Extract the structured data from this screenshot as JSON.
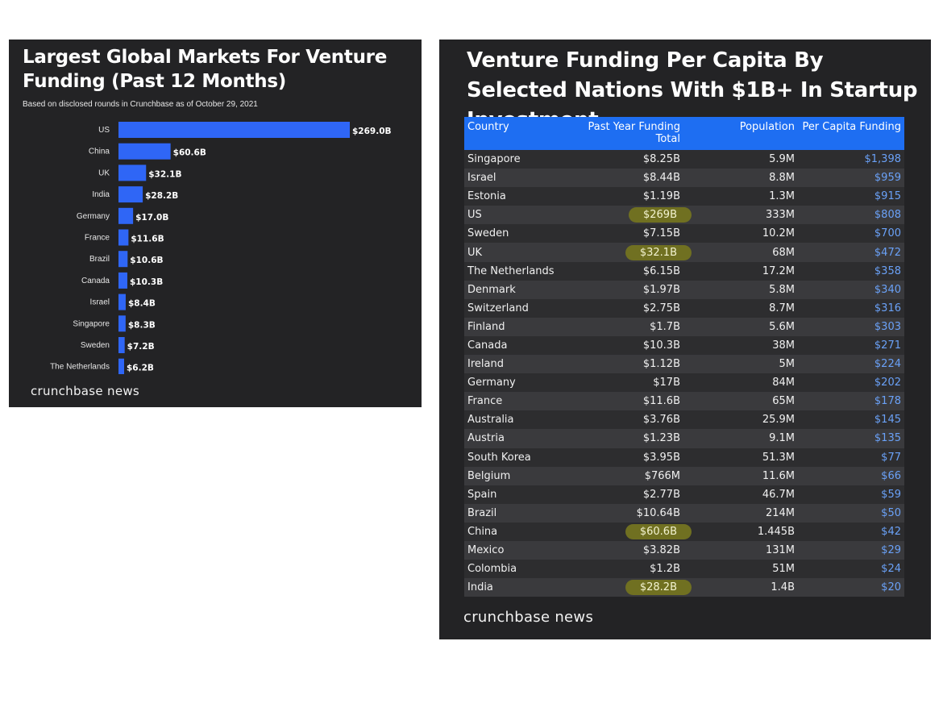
{
  "left_panel": {
    "title": "Largest Global Markets For Venture Funding (Past 12 Months)",
    "subtitle": "Based on disclosed rounds in Crunchbase as of October 29, 2021",
    "brand": "crunchbase news"
  },
  "right_panel": {
    "title": "Venture Funding Per Capita By Selected Nations With $1B+ In Startup Investment",
    "brand": "crunchbase news",
    "columns": [
      "Country",
      "Past Year Funding Total",
      "Population",
      "Per Capita Funding"
    ],
    "rows": [
      {
        "country": "Singapore",
        "funding": "$8.25B",
        "population": "5.9M",
        "per_capita": "$1,398",
        "highlight": false
      },
      {
        "country": "Israel",
        "funding": "$8.44B",
        "population": "8.8M",
        "per_capita": "$959",
        "highlight": false
      },
      {
        "country": "Estonia",
        "funding": "$1.19B",
        "population": "1.3M",
        "per_capita": "$915",
        "highlight": false
      },
      {
        "country": "US",
        "funding": "$269B",
        "population": "333M",
        "per_capita": "$808",
        "highlight": true
      },
      {
        "country": "Sweden",
        "funding": "$7.15B",
        "population": "10.2M",
        "per_capita": "$700",
        "highlight": false
      },
      {
        "country": "UK",
        "funding": "$32.1B",
        "population": "68M",
        "per_capita": "$472",
        "highlight": true
      },
      {
        "country": "The Netherlands",
        "funding": "$6.15B",
        "population": "17.2M",
        "per_capita": "$358",
        "highlight": false
      },
      {
        "country": "Denmark",
        "funding": "$1.97B",
        "population": "5.8M",
        "per_capita": "$340",
        "highlight": false
      },
      {
        "country": "Switzerland",
        "funding": "$2.75B",
        "population": "8.7M",
        "per_capita": "$316",
        "highlight": false
      },
      {
        "country": "Finland",
        "funding": "$1.7B",
        "population": "5.6M",
        "per_capita": "$303",
        "highlight": false
      },
      {
        "country": "Canada",
        "funding": "$10.3B",
        "population": "38M",
        "per_capita": "$271",
        "highlight": false
      },
      {
        "country": "Ireland",
        "funding": "$1.12B",
        "population": "5M",
        "per_capita": "$224",
        "highlight": false
      },
      {
        "country": "Germany",
        "funding": "$17B",
        "population": "84M",
        "per_capita": "$202",
        "highlight": false
      },
      {
        "country": "France",
        "funding": "$11.6B",
        "population": "65M",
        "per_capita": "$178",
        "highlight": false
      },
      {
        "country": "Australia",
        "funding": "$3.76B",
        "population": "25.9M",
        "per_capita": "$145",
        "highlight": false
      },
      {
        "country": "Austria",
        "funding": "$1.23B",
        "population": "9.1M",
        "per_capita": "$135",
        "highlight": false
      },
      {
        "country": "South Korea",
        "funding": "$3.95B",
        "population": "51.3M",
        "per_capita": "$77",
        "highlight": false
      },
      {
        "country": "Belgium",
        "funding": "$766M",
        "population": "11.6M",
        "per_capita": "$66",
        "highlight": false
      },
      {
        "country": "Spain",
        "funding": "$2.77B",
        "population": "46.7M",
        "per_capita": "$59",
        "highlight": false
      },
      {
        "country": "Brazil",
        "funding": "$10.64B",
        "population": "214M",
        "per_capita": "$50",
        "highlight": false
      },
      {
        "country": "China",
        "funding": "$60.6B",
        "population": "1.445B",
        "per_capita": "$42",
        "highlight": true
      },
      {
        "country": "Mexico",
        "funding": "$3.82B",
        "population": "131M",
        "per_capita": "$29",
        "highlight": false
      },
      {
        "country": "Colombia",
        "funding": "$1.2B",
        "population": "51M",
        "per_capita": "$24",
        "highlight": false
      },
      {
        "country": "India",
        "funding": "$28.2B",
        "population": "1.4B",
        "per_capita": "$20",
        "highlight": true
      }
    ]
  },
  "colors": {
    "panel_background": "#232325",
    "bar": "#2f66f6",
    "table_header": "#1e6ef2",
    "highlight": "#707021",
    "per_capita_text": "#6aa1f7"
  },
  "chart_data": [
    {
      "type": "bar",
      "orientation": "horizontal",
      "title": "Largest Global Markets For Venture Funding (Past 12 Months)",
      "subtitle": "Based on disclosed rounds in Crunchbase as of October 29, 2021",
      "categories": [
        "US",
        "China",
        "UK",
        "India",
        "Germany",
        "France",
        "Brazil",
        "Canada",
        "Israel",
        "Singapore",
        "Sweden",
        "The Netherlands"
      ],
      "values": [
        269.0,
        60.6,
        32.1,
        28.2,
        17.0,
        11.6,
        10.6,
        10.3,
        8.4,
        8.3,
        7.2,
        6.2
      ],
      "value_labels": [
        "$269.0B",
        "$60.6B",
        "$32.1B",
        "$28.2B",
        "$17.0B",
        "$11.6B",
        "$10.6B",
        "$10.3B",
        "$8.4B",
        "$8.3B",
        "$7.2B",
        "$6.2B"
      ],
      "xlabel": "",
      "ylabel": "",
      "xlim": [
        0,
        269
      ],
      "grid": false
    },
    {
      "type": "table",
      "title": "Venture Funding Per Capita By Selected Nations With $1B+ In Startup Investment",
      "columns": [
        "Country",
        "Past Year Funding Total",
        "Population",
        "Per Capita Funding"
      ],
      "highlighted": [
        "US",
        "UK",
        "China",
        "India"
      ]
    }
  ]
}
